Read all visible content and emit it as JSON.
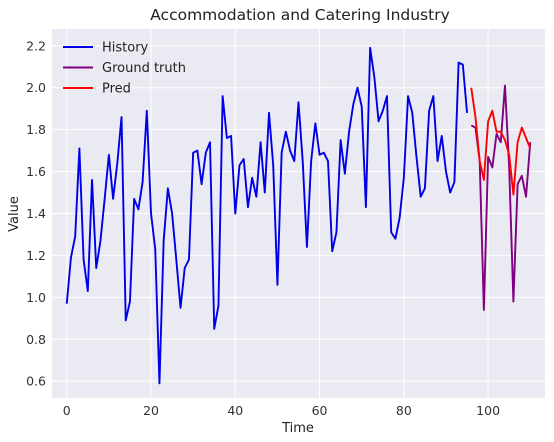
{
  "chart_data": {
    "type": "line",
    "title": "Accommodation and Catering Industry",
    "xlabel": "Time",
    "ylabel": "Value",
    "xlim": [
      -3.5,
      113.5
    ],
    "ylim": [
      0.52,
      2.28
    ],
    "xticks": [
      0,
      20,
      40,
      60,
      80,
      100
    ],
    "yticks": [
      0.6,
      0.8,
      1.0,
      1.2,
      1.4,
      1.6,
      1.8,
      2.0,
      2.2
    ],
    "ytick_labels": [
      "0.6",
      "0.8",
      "1.0",
      "1.2",
      "1.4",
      "1.6",
      "1.8",
      "2.0",
      "2.2"
    ],
    "grid": true,
    "legend_position": "top-left",
    "series": [
      {
        "name": "History",
        "color": "#0000e6",
        "x_start": 0,
        "values": [
          0.97,
          1.19,
          1.29,
          1.71,
          1.18,
          1.03,
          1.56,
          1.14,
          1.27,
          1.47,
          1.68,
          1.47,
          1.64,
          1.86,
          0.89,
          0.98,
          1.47,
          1.42,
          1.55,
          1.89,
          1.4,
          1.23,
          0.59,
          1.27,
          1.52,
          1.4,
          1.18,
          0.95,
          1.14,
          1.18,
          1.69,
          1.7,
          1.54,
          1.69,
          1.74,
          0.85,
          0.96,
          1.96,
          1.76,
          1.77,
          1.4,
          1.63,
          1.66,
          1.43,
          1.57,
          1.48,
          1.74,
          1.5,
          1.88,
          1.63,
          1.06,
          1.69,
          1.79,
          1.7,
          1.65,
          1.93,
          1.65,
          1.24,
          1.65,
          1.83,
          1.68,
          1.69,
          1.65,
          1.22,
          1.31,
          1.75,
          1.59,
          1.79,
          1.92,
          2.0,
          1.91,
          1.43,
          2.19,
          2.05,
          1.84,
          1.89,
          1.96,
          1.31,
          1.28,
          1.38,
          1.57,
          1.96,
          1.88,
          1.67,
          1.48,
          1.52,
          1.89,
          1.96,
          1.65,
          1.77,
          1.6,
          1.5,
          1.55,
          2.12,
          2.11,
          1.88
        ]
      },
      {
        "name": "Ground truth",
        "color": "#800080",
        "x_start": 96,
        "values": [
          1.82,
          1.81,
          1.65,
          0.94,
          1.67,
          1.62,
          1.78,
          1.74,
          2.01,
          1.62,
          0.98,
          1.54,
          1.58,
          1.48,
          1.74
        ]
      },
      {
        "name": "Pred",
        "color": "#ff0000",
        "x_start": 96,
        "values": [
          2.0,
          1.86,
          1.65,
          1.56,
          1.84,
          1.89,
          1.79,
          1.79,
          1.75,
          1.68,
          1.49,
          1.74,
          1.81,
          1.76,
          1.71
        ]
      }
    ]
  }
}
